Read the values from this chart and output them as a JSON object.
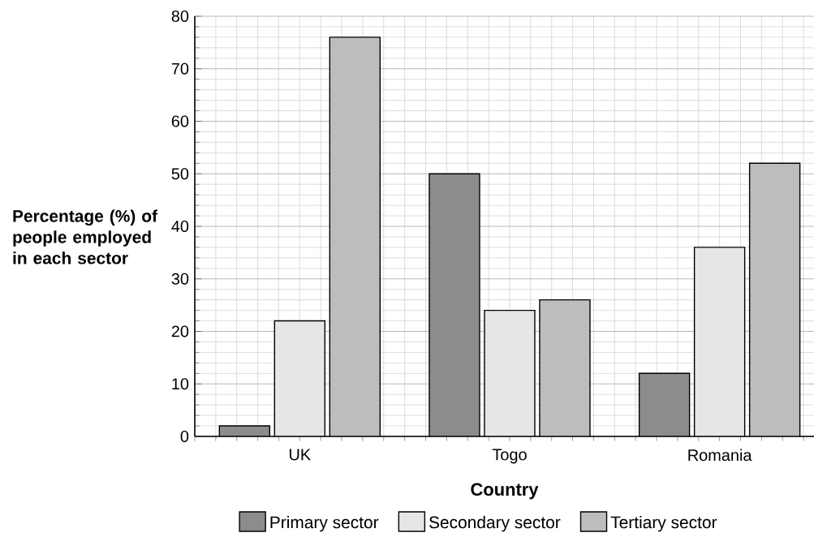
{
  "chart_data": {
    "type": "bar",
    "xlabel": "Country",
    "ylabel": "Percentage (%) of people employed in each sector",
    "categories": [
      "UK",
      "Togo",
      "Romania"
    ],
    "series": [
      {
        "name": "Primary sector",
        "color": "#8c8c8c",
        "values": [
          2,
          50,
          12
        ]
      },
      {
        "name": "Secondary sector",
        "color": "#e6e6e6",
        "values": [
          22,
          24,
          36
        ]
      },
      {
        "name": "Tertiary sector",
        "color": "#bdbdbd",
        "values": [
          76,
          26,
          52
        ]
      }
    ],
    "ylim": [
      0,
      80
    ],
    "yticks": [
      0,
      10,
      20,
      30,
      40,
      50,
      60,
      70,
      80
    ],
    "grid": true,
    "legend": "bottom"
  }
}
